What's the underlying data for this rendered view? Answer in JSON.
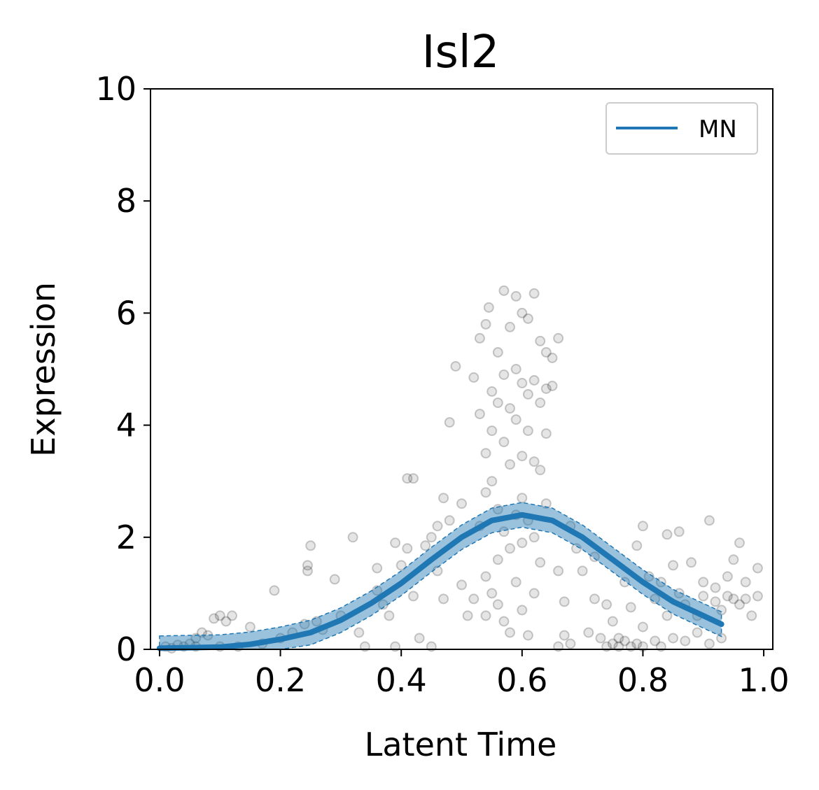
{
  "chart_data": {
    "type": "scatter",
    "title": "Isl2",
    "xlabel": "Latent Time",
    "ylabel": "Expression",
    "xlim": [
      -0.015,
      1.015
    ],
    "ylim": [
      0,
      10
    ],
    "x_ticks": [
      "0.0",
      "0.2",
      "0.4",
      "0.6",
      "0.8",
      "1.0"
    ],
    "y_ticks": [
      "0",
      "2",
      "4",
      "6",
      "8",
      "10"
    ],
    "grid": false,
    "legend": {
      "placement": "top-right",
      "entries": [
        "MN"
      ]
    },
    "colors": {
      "points": "#000000",
      "fit_line": "#1f77b4",
      "band": "#1f77b4"
    },
    "series": [
      {
        "kind": "scatter",
        "points": [
          [
            0.01,
            0.05
          ],
          [
            0.02,
            0.02
          ],
          [
            0.03,
            0.08
          ],
          [
            0.04,
            0.05
          ],
          [
            0.05,
            0.1
          ],
          [
            0.06,
            0.2
          ],
          [
            0.07,
            0.3
          ],
          [
            0.08,
            0.25
          ],
          [
            0.09,
            0.55
          ],
          [
            0.1,
            0.6
          ],
          [
            0.11,
            0.5
          ],
          [
            0.12,
            0.6
          ],
          [
            0.06,
            0.05
          ],
          [
            0.1,
            0.05
          ],
          [
            0.13,
            0.05
          ],
          [
            0.15,
            0.4
          ],
          [
            0.17,
            0.1
          ],
          [
            0.19,
            1.05
          ],
          [
            0.2,
            0.2
          ],
          [
            0.22,
            0.3
          ],
          [
            0.24,
            0.45
          ],
          [
            0.25,
            1.85
          ],
          [
            0.245,
            1.5
          ],
          [
            0.245,
            1.4
          ],
          [
            0.26,
            0.5
          ],
          [
            0.27,
            0.35
          ],
          [
            0.29,
            1.25
          ],
          [
            0.3,
            0.6
          ],
          [
            0.32,
            2.0
          ],
          [
            0.33,
            0.3
          ],
          [
            0.34,
            0.05
          ],
          [
            0.36,
            1.05
          ],
          [
            0.37,
            0.8
          ],
          [
            0.36,
            1.45
          ],
          [
            0.38,
            0.6
          ],
          [
            0.39,
            1.9
          ],
          [
            0.4,
            1.5
          ],
          [
            0.41,
            1.8
          ],
          [
            0.42,
            0.95
          ],
          [
            0.43,
            0.2
          ],
          [
            0.44,
            1.85
          ],
          [
            0.45,
            2.0
          ],
          [
            0.46,
            1.4
          ],
          [
            0.47,
            0.9
          ],
          [
            0.48,
            2.3
          ],
          [
            0.48,
            4.05
          ],
          [
            0.41,
            3.05
          ],
          [
            0.42,
            3.05
          ],
          [
            0.46,
            2.2
          ],
          [
            0.47,
            2.7
          ],
          [
            0.49,
            5.05
          ],
          [
            0.5,
            2.6
          ],
          [
            0.5,
            1.15
          ],
          [
            0.51,
            0.6
          ],
          [
            0.52,
            4.85
          ],
          [
            0.52,
            0.9
          ],
          [
            0.53,
            5.55
          ],
          [
            0.53,
            4.2
          ],
          [
            0.53,
            2.2
          ],
          [
            0.54,
            5.8
          ],
          [
            0.54,
            3.5
          ],
          [
            0.54,
            2.8
          ],
          [
            0.54,
            1.3
          ],
          [
            0.54,
            0.6
          ],
          [
            0.545,
            6.1
          ],
          [
            0.55,
            4.6
          ],
          [
            0.55,
            3.9
          ],
          [
            0.55,
            3.0
          ],
          [
            0.55,
            1.0
          ],
          [
            0.56,
            5.3
          ],
          [
            0.56,
            4.4
          ],
          [
            0.56,
            2.5
          ],
          [
            0.56,
            1.6
          ],
          [
            0.56,
            0.8
          ],
          [
            0.57,
            6.4
          ],
          [
            0.57,
            4.9
          ],
          [
            0.57,
            3.7
          ],
          [
            0.57,
            2.1
          ],
          [
            0.57,
            0.5
          ],
          [
            0.58,
            5.75
          ],
          [
            0.58,
            4.3
          ],
          [
            0.58,
            3.3
          ],
          [
            0.58,
            1.8
          ],
          [
            0.58,
            0.3
          ],
          [
            0.59,
            6.3
          ],
          [
            0.59,
            5.0
          ],
          [
            0.59,
            4.1
          ],
          [
            0.59,
            2.4
          ],
          [
            0.59,
            1.2
          ],
          [
            0.6,
            6.0
          ],
          [
            0.6,
            4.75
          ],
          [
            0.6,
            3.45
          ],
          [
            0.6,
            2.7
          ],
          [
            0.6,
            1.9
          ],
          [
            0.6,
            0.7
          ],
          [
            0.61,
            5.9
          ],
          [
            0.61,
            4.55
          ],
          [
            0.61,
            3.9
          ],
          [
            0.61,
            2.3
          ],
          [
            0.61,
            0.25
          ],
          [
            0.62,
            6.35
          ],
          [
            0.62,
            4.8
          ],
          [
            0.62,
            3.35
          ],
          [
            0.62,
            2.0
          ],
          [
            0.62,
            1.0
          ],
          [
            0.63,
            5.5
          ],
          [
            0.63,
            4.4
          ],
          [
            0.63,
            3.2
          ],
          [
            0.63,
            1.55
          ],
          [
            0.64,
            5.3
          ],
          [
            0.64,
            4.65
          ],
          [
            0.64,
            3.85
          ],
          [
            0.64,
            2.6
          ],
          [
            0.65,
            5.2
          ],
          [
            0.65,
            4.7
          ],
          [
            0.66,
            5.55
          ],
          [
            0.66,
            1.4
          ],
          [
            0.67,
            0.85
          ],
          [
            0.67,
            0.25
          ],
          [
            0.68,
            2.2
          ],
          [
            0.69,
            1.8
          ],
          [
            0.7,
            1.4
          ],
          [
            0.71,
            0.3
          ],
          [
            0.72,
            1.65
          ],
          [
            0.72,
            0.9
          ],
          [
            0.73,
            0.2
          ],
          [
            0.74,
            0.8
          ],
          [
            0.74,
            0.05
          ],
          [
            0.75,
            0.1
          ],
          [
            0.75,
            0.5
          ],
          [
            0.76,
            0.05
          ],
          [
            0.77,
            1.2
          ],
          [
            0.78,
            0.75
          ],
          [
            0.78,
            0.05
          ],
          [
            0.79,
            1.85
          ],
          [
            0.8,
            0.4
          ],
          [
            0.8,
            2.2
          ],
          [
            0.81,
            1.3
          ],
          [
            0.82,
            0.9
          ],
          [
            0.82,
            0.15
          ],
          [
            0.83,
            1.2
          ],
          [
            0.84,
            0.6
          ],
          [
            0.84,
            2.05
          ],
          [
            0.85,
            1.5
          ],
          [
            0.86,
            1.0
          ],
          [
            0.86,
            2.1
          ],
          [
            0.87,
            0.8
          ],
          [
            0.87,
            0.15
          ],
          [
            0.88,
            1.55
          ],
          [
            0.89,
            0.3
          ],
          [
            0.9,
            1.2
          ],
          [
            0.9,
            0.95
          ],
          [
            0.91,
            2.3
          ],
          [
            0.91,
            0.1
          ],
          [
            0.92,
            1.1
          ],
          [
            0.93,
            0.7
          ],
          [
            0.93,
            0.2
          ],
          [
            0.94,
            1.3
          ],
          [
            0.95,
            1.6
          ],
          [
            0.95,
            0.9
          ],
          [
            0.96,
            1.9
          ],
          [
            0.96,
            0.8
          ],
          [
            0.97,
            1.2
          ],
          [
            0.98,
            0.6
          ],
          [
            0.99,
            1.45
          ],
          [
            0.99,
            0.95
          ],
          [
            0.97,
            0.9
          ],
          [
            0.94,
            0.95
          ],
          [
            0.92,
            0.85
          ],
          [
            0.89,
            0.6
          ],
          [
            0.85,
            0.2
          ],
          [
            0.83,
            0.05
          ],
          [
            0.8,
            0.05
          ],
          [
            0.79,
            0.1
          ],
          [
            0.77,
            0.15
          ],
          [
            0.76,
            0.2
          ],
          [
            0.68,
            0.1
          ],
          [
            0.66,
            0.05
          ],
          [
            0.45,
            0.05
          ],
          [
            0.39,
            0.05
          ]
        ]
      },
      {
        "name": "MN",
        "kind": "line",
        "x": [
          0.0,
          0.05,
          0.1,
          0.15,
          0.2,
          0.25,
          0.3,
          0.35,
          0.4,
          0.45,
          0.5,
          0.55,
          0.6,
          0.65,
          0.7,
          0.75,
          0.8,
          0.85,
          0.9,
          0.93
        ],
        "y": [
          0.02,
          0.03,
          0.04,
          0.09,
          0.18,
          0.3,
          0.52,
          0.82,
          1.18,
          1.6,
          2.0,
          2.3,
          2.4,
          2.3,
          2.0,
          1.6,
          1.2,
          0.85,
          0.6,
          0.45
        ],
        "band_halfwidth": 0.22
      }
    ]
  }
}
